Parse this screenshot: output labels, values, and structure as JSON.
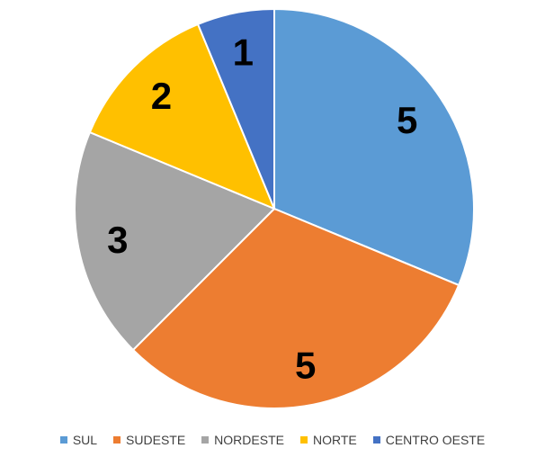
{
  "chart_data": {
    "type": "pie",
    "categories": [
      "SUL",
      "SUDESTE",
      "NORDESTE",
      "NORTE",
      "CENTRO OESTE"
    ],
    "values": [
      5,
      5,
      3,
      2,
      1
    ],
    "colors": [
      "#5b9bd5",
      "#ed7d31",
      "#a5a5a5",
      "#ffc000",
      "#4472c4"
    ],
    "legend": "bottom"
  }
}
